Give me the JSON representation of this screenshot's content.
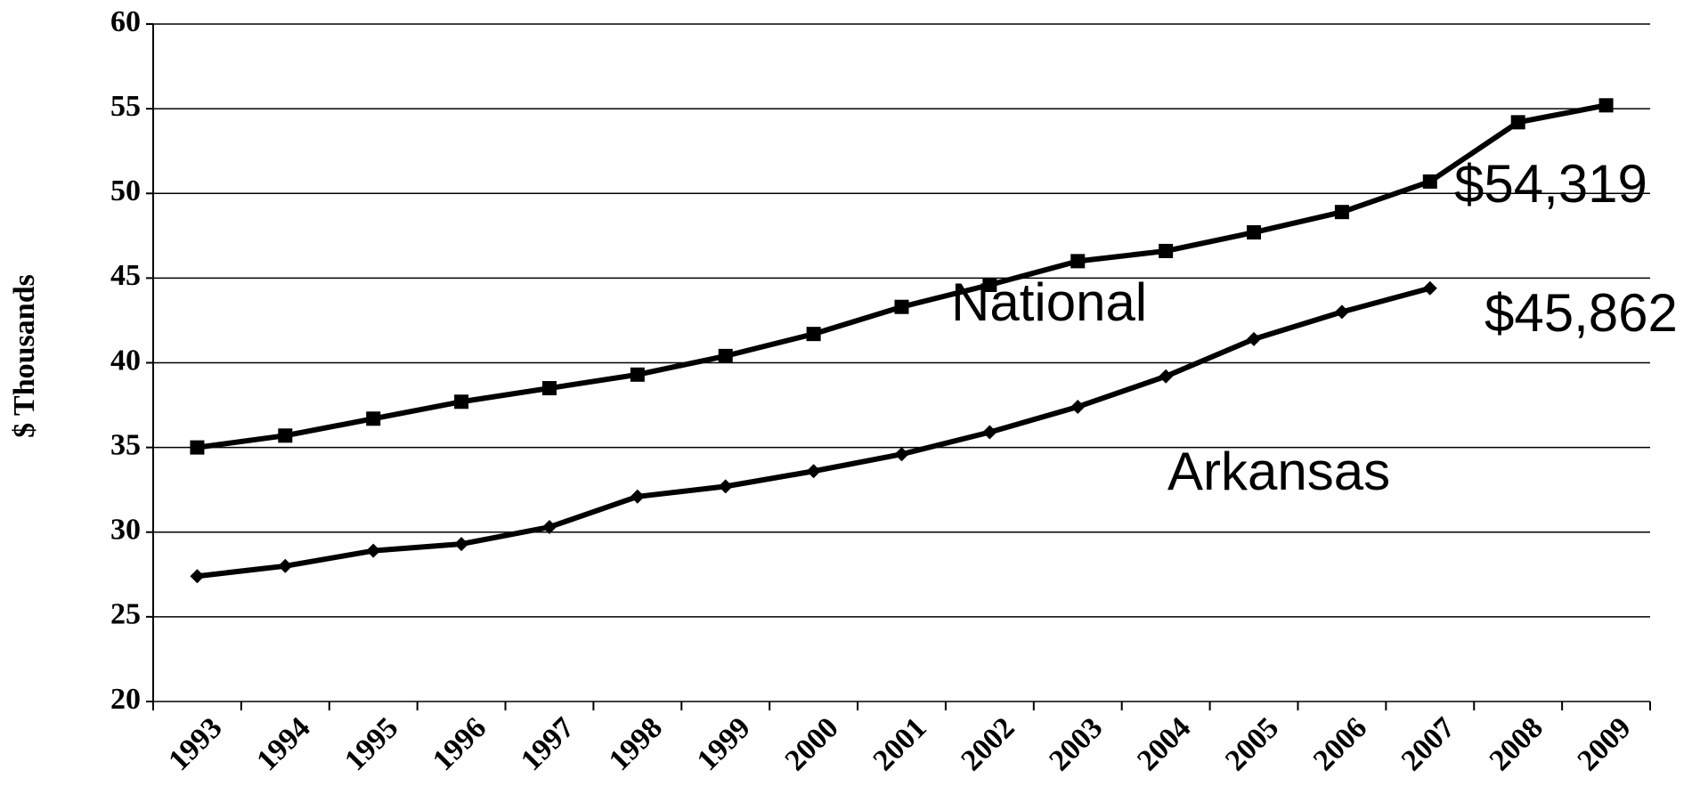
{
  "chart_data": {
    "type": "line",
    "y_label": "$ Thousands",
    "categories": [
      "1993",
      "1994",
      "1995",
      "1996",
      "1997",
      "1998",
      "1999",
      "2000",
      "2001",
      "2002",
      "2003",
      "2004",
      "2005",
      "2006",
      "2007",
      "2008",
      "2009"
    ],
    "series": [
      {
        "name": "National",
        "color": "#000000",
        "marker": "square",
        "values": [
          35.0,
          35.7,
          36.7,
          37.7,
          38.5,
          39.3,
          40.4,
          41.7,
          43.3,
          44.6,
          46.0,
          46.6,
          47.7,
          48.9,
          50.7,
          54.2,
          55.2
        ]
      },
      {
        "name": "Arkansas",
        "color": "#000000",
        "marker": "diamond",
        "values": [
          27.4,
          28.0,
          28.9,
          29.3,
          30.3,
          32.1,
          32.7,
          33.6,
          34.6,
          35.9,
          37.4,
          39.2,
          41.4,
          43.0,
          44.4,
          null,
          null
        ]
      }
    ],
    "annotations": [
      "$54,319",
      "$45,862"
    ],
    "ylim": [
      20,
      60
    ],
    "yticks": [
      20,
      25,
      30,
      35,
      40,
      45,
      50,
      55,
      60
    ],
    "grid": true
  }
}
